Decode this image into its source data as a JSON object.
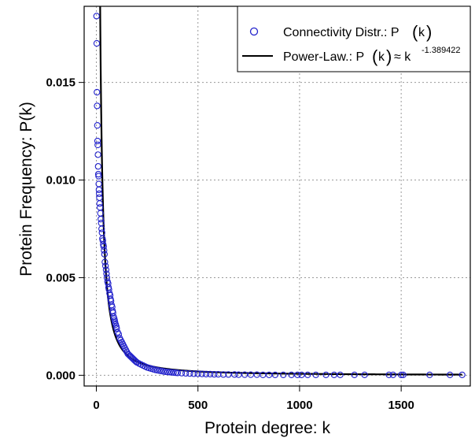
{
  "chart_data": {
    "type": "scatter",
    "title": "",
    "xlabel": "Protein degree: k",
    "ylabel": "Protein Frequency: P(k)",
    "xlim": [
      -60,
      1840
    ],
    "ylim": [
      -0.00055,
      0.0189
    ],
    "x_ticks": [
      0,
      500,
      1000,
      1500
    ],
    "x_tick_labels": [
      "0",
      "500",
      "1000",
      "1500"
    ],
    "y_ticks": [
      0.0,
      0.005,
      0.01,
      0.015
    ],
    "y_tick_labels": [
      "0.000",
      "0.005",
      "0.010",
      "0.015"
    ],
    "grid": true,
    "legend_position": "top-right",
    "colors": {
      "points": "#2222cc",
      "fit": "#000000",
      "grid": "#bbbbbb"
    },
    "legend": {
      "points_pre": "Connectivity Distr.: P",
      "points_arg": "k",
      "fit_pre": "Power-Law.: P",
      "fit_arg": "k",
      "fit_approx": "≈ k",
      "fit_exponent": "-1.389422"
    },
    "fit": {
      "exponent": -1.389422,
      "coefficient": 1.11
    },
    "series": [
      {
        "name": "Connectivity Distr.: P(k)",
        "x": [
          1,
          2,
          3,
          4,
          5,
          6,
          7,
          8,
          9,
          10,
          11,
          12,
          13,
          14,
          15,
          16,
          18,
          20,
          22,
          24,
          26,
          28,
          30,
          32,
          34,
          36,
          38,
          40,
          42,
          45,
          48,
          50,
          52,
          55,
          58,
          60,
          62,
          65,
          68,
          70,
          72,
          75,
          78,
          80,
          82,
          85,
          88,
          90,
          92,
          95,
          98,
          100,
          105,
          110,
          115,
          120,
          125,
          130,
          135,
          140,
          145,
          150,
          155,
          160,
          165,
          170,
          175,
          180,
          185,
          190,
          195,
          200,
          210,
          220,
          230,
          240,
          250,
          260,
          270,
          280,
          290,
          300,
          310,
          320,
          330,
          340,
          350,
          360,
          370,
          380,
          390,
          400,
          420,
          440,
          460,
          480,
          500,
          520,
          540,
          560,
          580,
          600,
          625,
          650,
          680,
          700,
          730,
          760,
          790,
          820,
          850,
          880,
          920,
          960,
          990,
          1010,
          1040,
          1080,
          1130,
          1170,
          1200,
          1270,
          1320,
          1440,
          1460,
          1500,
          1510,
          1640,
          1740,
          1800
        ],
        "y": [
          0.0184,
          0.017,
          0.0145,
          0.0138,
          0.0128,
          0.012,
          0.0118,
          0.0113,
          0.0107,
          0.0103,
          0.0102,
          0.0098,
          0.0095,
          0.0093,
          0.0091,
          0.0088,
          0.0086,
          0.0083,
          0.008,
          0.0078,
          0.0075,
          0.0073,
          0.007,
          0.0069,
          0.0067,
          0.0066,
          0.0064,
          0.0062,
          0.0058,
          0.0056,
          0.0054,
          0.0052,
          0.005,
          0.0048,
          0.0047,
          0.0045,
          0.0044,
          0.0042,
          0.0041,
          0.0039,
          0.0038,
          0.0036,
          0.0035,
          0.0033,
          0.0032,
          0.003,
          0.0029,
          0.0028,
          0.0027,
          0.0026,
          0.0025,
          0.0024,
          0.0022,
          0.0021,
          0.0019,
          0.0018,
          0.0017,
          0.0016,
          0.0015,
          0.0014,
          0.0013,
          0.0012,
          0.0011,
          0.00105,
          0.001,
          0.00095,
          0.0009,
          0.00085,
          0.0008,
          0.00075,
          0.0007,
          0.00066,
          0.0006,
          0.00055,
          0.0005,
          0.00045,
          0.0004,
          0.00037,
          0.00034,
          0.00031,
          0.00028,
          0.00026,
          0.00024,
          0.00022,
          0.0002,
          0.00018,
          0.00017,
          0.00016,
          0.00015,
          0.00014,
          0.00013,
          0.00012,
          0.00011,
          0.0001,
          9e-05,
          8e-05,
          8e-05,
          7e-05,
          6e-05,
          6e-05,
          5e-05,
          5e-05,
          4e-05,
          4e-05,
          4e-05,
          3e-05,
          3e-05,
          3e-05,
          3e-05,
          2e-05,
          2e-05,
          2e-05,
          2e-05,
          2e-05,
          2e-05,
          2e-05,
          2e-05,
          2e-05,
          2e-05,
          2e-05,
          2e-05,
          2e-05,
          2e-05,
          2e-05,
          2e-05,
          2e-05,
          2e-05,
          2e-05,
          2e-05,
          2e-05
        ]
      }
    ]
  }
}
